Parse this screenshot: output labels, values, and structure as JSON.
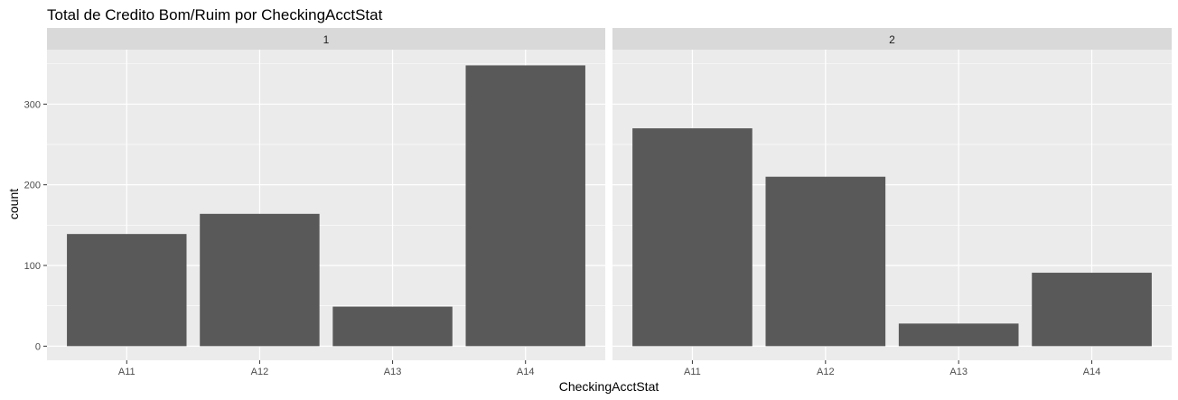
{
  "chart_data": {
    "type": "bar",
    "title": "Total de Credito Bom/Ruim por CheckingAcctStat",
    "xlabel": "CheckingAcctStat",
    "ylabel": "count",
    "ylim": [
      0,
      350
    ],
    "yticks": [
      0,
      100,
      200,
      300
    ],
    "categories": [
      "A11",
      "A12",
      "A13",
      "A14"
    ],
    "grid": true,
    "legend": "none",
    "colors": {
      "bar": "#595959",
      "panel": "#ebebeb",
      "strip": "#d9d9d9",
      "grid": "#ffffff"
    },
    "facets": [
      {
        "label": "1",
        "values": [
          139,
          164,
          49,
          348
        ]
      },
      {
        "label": "2",
        "values": [
          270,
          210,
          28,
          91
        ]
      }
    ]
  }
}
